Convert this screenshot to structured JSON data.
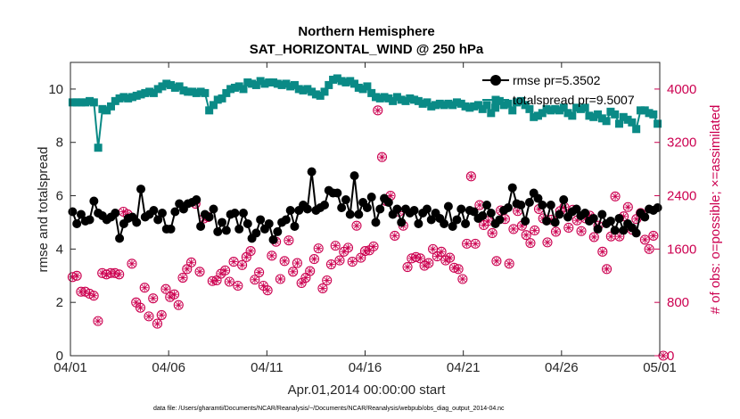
{
  "chart_data": {
    "type": "line",
    "title": [
      "Northern Hemisphere",
      "SAT_HORIZONTAL_WIND @ 250 hPa"
    ],
    "xlabel": "Apr.01,2014 00:00:00 start",
    "ylabel": "rmse and totalspread",
    "ylabel_right": "# of obs: o=possible; ×=assimilated",
    "footnote": "data file: /Users/gharamti/Documents/NCAR/Reanalysis/~/Documents/NCAR/Reanalysis/webpub/obs_diag_output_2014-04.nc",
    "x_range": [
      0,
      30
    ],
    "ylim": [
      0,
      11
    ],
    "ylim_right": [
      0,
      4400
    ],
    "x_ticks": [
      {
        "pos": 0,
        "label": "04/01"
      },
      {
        "pos": 5,
        "label": "04/06"
      },
      {
        "pos": 10,
        "label": "04/11"
      },
      {
        "pos": 15,
        "label": "04/16"
      },
      {
        "pos": 20,
        "label": "04/21"
      },
      {
        "pos": 25,
        "label": "04/26"
      },
      {
        "pos": 30,
        "label": "05/01"
      }
    ],
    "y_ticks": [
      {
        "value": 0,
        "label": "0"
      },
      {
        "value": 2,
        "label": "2"
      },
      {
        "value": 4,
        "label": "4"
      },
      {
        "value": 6,
        "label": "6"
      },
      {
        "value": 8,
        "label": "8"
      },
      {
        "value": 10,
        "label": "10"
      }
    ],
    "y_ticks_right": [
      {
        "value": 0,
        "label": "0"
      },
      {
        "value": 800,
        "label": "800"
      },
      {
        "value": 1600,
        "label": "1600"
      },
      {
        "value": 2400,
        "label": "2400"
      },
      {
        "value": 3200,
        "label": "3200"
      },
      {
        "value": 4000,
        "label": "4000"
      }
    ],
    "colors": {
      "rmse": "#000000",
      "totalspread": "#0a8a86",
      "obs": "#cc0050",
      "axis": "#262626"
    },
    "series": [
      {
        "name": "rmse",
        "legend": "rmse pr=5.3502",
        "axis": "left",
        "values": [
          5.4,
          4.95,
          5.3,
          5.05,
          5.1,
          5.8,
          5.35,
          5.25,
          5.1,
          5.2,
          5.35,
          4.4,
          4.95,
          5.15,
          5.2,
          5.0,
          6.25,
          5.2,
          5.3,
          5.45,
          5.1,
          5.35,
          4.75,
          4.75,
          5.4,
          5.7,
          5.5,
          5.7,
          5.75,
          5.85,
          4.85,
          5.3,
          5.2,
          5.5,
          4.65,
          5.0,
          4.7,
          5.3,
          5.35,
          4.75,
          5.35,
          4.95,
          4.4,
          4.6,
          5.1,
          4.75,
          4.95,
          4.35,
          4.65,
          5.0,
          5.1,
          5.45,
          4.85,
          5.45,
          5.65,
          5.5,
          6.9,
          5.45,
          5.55,
          5.65,
          6.2,
          6.1,
          6.1,
          5.55,
          5.85,
          5.3,
          6.75,
          5.3,
          5.75,
          5.55,
          5.95,
          5.0,
          5.5,
          5.9,
          5.75,
          5.3,
          5.5,
          5.0,
          5.5,
          5.35,
          5.45,
          4.95,
          5.35,
          5.5,
          5.1,
          5.35,
          5.15,
          4.95,
          5.6,
          4.85,
          5.1,
          5.5,
          4.95,
          5.45,
          5.4,
          5.15,
          5.25,
          5.65,
          5.35,
          4.95,
          5.1,
          5.45,
          5.55,
          6.3,
          5.7,
          5.65,
          5.05,
          5.75,
          6.1,
          5.9,
          5.65,
          5.05,
          5.65,
          5.0,
          5.3,
          5.85,
          5.2,
          5.4,
          5.5,
          5.25,
          5.35,
          5.05,
          5.15,
          4.75,
          5.3,
          4.95,
          5.05,
          4.7,
          5.15,
          4.7,
          4.95,
          4.8,
          4.6,
          5.35,
          5.2,
          5.5,
          5.45,
          5.55
        ]
      },
      {
        "name": "totalspread",
        "legend": "totalspread pr=9.5007",
        "axis": "left",
        "values": [
          9.5,
          9.5,
          9.5,
          9.5,
          9.55,
          9.5,
          7.8,
          9.25,
          9.2,
          9.35,
          9.55,
          9.65,
          9.7,
          9.65,
          9.7,
          9.75,
          9.8,
          9.85,
          9.9,
          9.85,
          10.0,
          10.1,
          10.2,
          10.15,
          10.05,
          10.1,
          9.95,
          9.9,
          9.9,
          9.85,
          9.9,
          9.85,
          9.2,
          9.4,
          9.6,
          9.65,
          9.85,
          10.0,
          10.05,
          10.1,
          10.0,
          10.25,
          10.2,
          10.15,
          10.3,
          10.2,
          10.25,
          10.25,
          10.2,
          10.15,
          10.2,
          10.1,
          10.15,
          10.0,
          9.95,
          10.0,
          9.9,
          9.8,
          9.75,
          9.9,
          10.15,
          10.35,
          10.4,
          10.3,
          10.25,
          10.3,
          10.2,
          10.05,
          10.0,
          10.1,
          9.85,
          9.7,
          9.65,
          9.7,
          9.65,
          9.55,
          9.7,
          9.6,
          9.55,
          9.65,
          9.6,
          9.55,
          9.45,
          9.5,
          9.35,
          9.4,
          9.45,
          9.4,
          9.45,
          9.4,
          9.5,
          9.45,
          9.35,
          9.3,
          9.35,
          9.4,
          9.25,
          9.4,
          9.1,
          9.3,
          9.55,
          9.4,
          9.45,
          9.2,
          9.5,
          9.55,
          9.4,
          9.25,
          8.95,
          9.0,
          9.1,
          9.25,
          9.2,
          9.25,
          9.2,
          9.3,
          9.1,
          9.0,
          9.3,
          9.25,
          9.3,
          9.0,
          8.95,
          9.05,
          8.9,
          8.8,
          9.15,
          9.05,
          8.7,
          8.95,
          8.85,
          8.75,
          8.5,
          9.2,
          9.2,
          9.1,
          9.05,
          8.7
        ]
      },
      {
        "name": "obs_possible",
        "legend": "",
        "axis": "right",
        "values": [
          1180,
          1200,
          960,
          960,
          930,
          900,
          520,
          1240,
          1220,
          1240,
          1240,
          1220,
          2160,
          2120,
          1380,
          800,
          720,
          1020,
          590,
          860,
          480,
          610,
          1000,
          880,
          920,
          760,
          1170,
          1300,
          1400,
          2280,
          1260,
          2060,
          2080,
          1120,
          1130,
          1230,
          1280,
          1110,
          1410,
          1050,
          1360,
          1480,
          1570,
          1140,
          1250,
          1050,
          980,
          1500,
          1710,
          1150,
          1420,
          1730,
          1260,
          1390,
          1090,
          1170,
          1270,
          1450,
          1610,
          1010,
          1130,
          1370,
          1650,
          1430,
          1560,
          1620,
          1410,
          1950,
          1470,
          1570,
          1580,
          1640,
          3680,
          2980,
          2320,
          2400,
          1800,
          2160,
          1950,
          1330,
          1460,
          1480,
          1460,
          1350,
          1390,
          1600,
          1490,
          1560,
          1430,
          1470,
          1320,
          1300,
          1150,
          1680,
          2690,
          1680,
          2260,
          1960,
          2020,
          1840,
          1420,
          2180,
          2050,
          1380,
          1900,
          2170,
          1950,
          1810,
          1690,
          1880,
          2200,
          2060,
          1700,
          2040,
          1860,
          2170,
          2230,
          1920,
          2190,
          2030,
          1870,
          2060,
          2100,
          1780,
          1950,
          1560,
          1300,
          1790,
          2390,
          1790,
          2090,
          2230,
          1890,
          2050,
          2140,
          1740,
          1600,
          1800,
          0
        ]
      }
    ]
  },
  "legend": {
    "rmse_label": "rmse pr=5.3502",
    "totalspread_label": "totalspread pr=9.5007"
  }
}
